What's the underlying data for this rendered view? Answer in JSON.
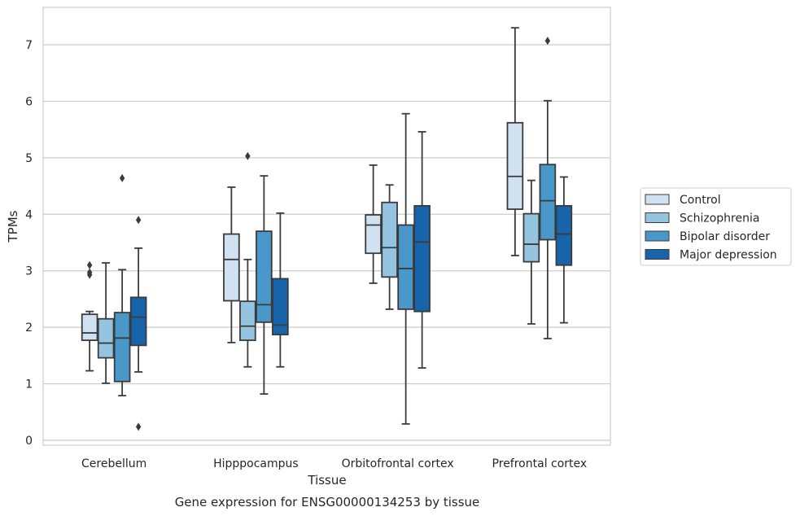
{
  "chart_data": {
    "type": "box",
    "title": "Gene expression for ENSG00000134253 by tissue",
    "xlabel": "Tissue",
    "ylabel": "TPMs",
    "ylim": [
      -0.1,
      7.65
    ],
    "yticks": [
      0,
      1,
      2,
      3,
      4,
      5,
      6,
      7
    ],
    "grid": true,
    "legend_position": "right",
    "categories": [
      "Cerebellum",
      "Hipppocampus",
      "Orbitofrontal cortex",
      "Prefrontal cortex"
    ],
    "series": [
      {
        "name": "Control",
        "color": "#d0e1f2",
        "boxes": [
          {
            "whisker_low": 1.23,
            "q1": 1.77,
            "median": 1.9,
            "q3": 2.23,
            "whisker_high": 2.28,
            "outliers": [
              2.93,
              2.97,
              3.1
            ]
          },
          {
            "whisker_low": 1.73,
            "q1": 2.47,
            "median": 3.2,
            "q3": 3.65,
            "whisker_high": 4.48,
            "outliers": []
          },
          {
            "whisker_low": 2.78,
            "q1": 3.31,
            "median": 3.81,
            "q3": 3.99,
            "whisker_high": 4.87,
            "outliers": []
          },
          {
            "whisker_low": 3.27,
            "q1": 4.09,
            "median": 4.67,
            "q3": 5.62,
            "whisker_high": 7.3,
            "outliers": []
          }
        ]
      },
      {
        "name": "Schizophrenia",
        "color": "#94c4df",
        "boxes": [
          {
            "whisker_low": 1.01,
            "q1": 1.46,
            "median": 1.72,
            "q3": 2.15,
            "whisker_high": 3.14,
            "outliers": []
          },
          {
            "whisker_low": 1.3,
            "q1": 1.77,
            "median": 2.02,
            "q3": 2.46,
            "whisker_high": 3.2,
            "outliers": [
              5.03
            ]
          },
          {
            "whisker_low": 2.32,
            "q1": 2.89,
            "median": 3.41,
            "q3": 4.21,
            "whisker_high": 4.52,
            "outliers": []
          },
          {
            "whisker_low": 2.06,
            "q1": 3.16,
            "median": 3.47,
            "q3": 4.01,
            "whisker_high": 4.6,
            "outliers": []
          }
        ]
      },
      {
        "name": "Bipolar disorder",
        "color": "#4a98c9",
        "boxes": [
          {
            "whisker_low": 0.79,
            "q1": 1.04,
            "median": 1.81,
            "q3": 2.26,
            "whisker_high": 3.02,
            "outliers": [
              4.64
            ]
          },
          {
            "whisker_low": 0.82,
            "q1": 2.09,
            "median": 2.4,
            "q3": 3.7,
            "whisker_high": 4.68,
            "outliers": []
          },
          {
            "whisker_low": 0.29,
            "q1": 2.32,
            "median": 3.04,
            "q3": 3.81,
            "whisker_high": 5.78,
            "outliers": []
          },
          {
            "whisker_low": 1.8,
            "q1": 3.55,
            "median": 4.24,
            "q3": 4.88,
            "whisker_high": 6.01,
            "outliers": [
              7.07
            ]
          }
        ]
      },
      {
        "name": "Major depression",
        "color": "#1764ab",
        "boxes": [
          {
            "whisker_low": 1.21,
            "q1": 1.68,
            "median": 2.18,
            "q3": 2.53,
            "whisker_high": 3.4,
            "outliers": [
              0.24,
              3.9
            ]
          },
          {
            "whisker_low": 1.3,
            "q1": 1.87,
            "median": 2.04,
            "q3": 2.86,
            "whisker_high": 4.02,
            "outliers": []
          },
          {
            "whisker_low": 1.28,
            "q1": 2.28,
            "median": 3.51,
            "q3": 4.15,
            "whisker_high": 5.46,
            "outliers": []
          },
          {
            "whisker_low": 2.08,
            "q1": 3.1,
            "median": 3.65,
            "q3": 4.15,
            "whisker_high": 4.66,
            "outliers": []
          }
        ]
      }
    ]
  }
}
